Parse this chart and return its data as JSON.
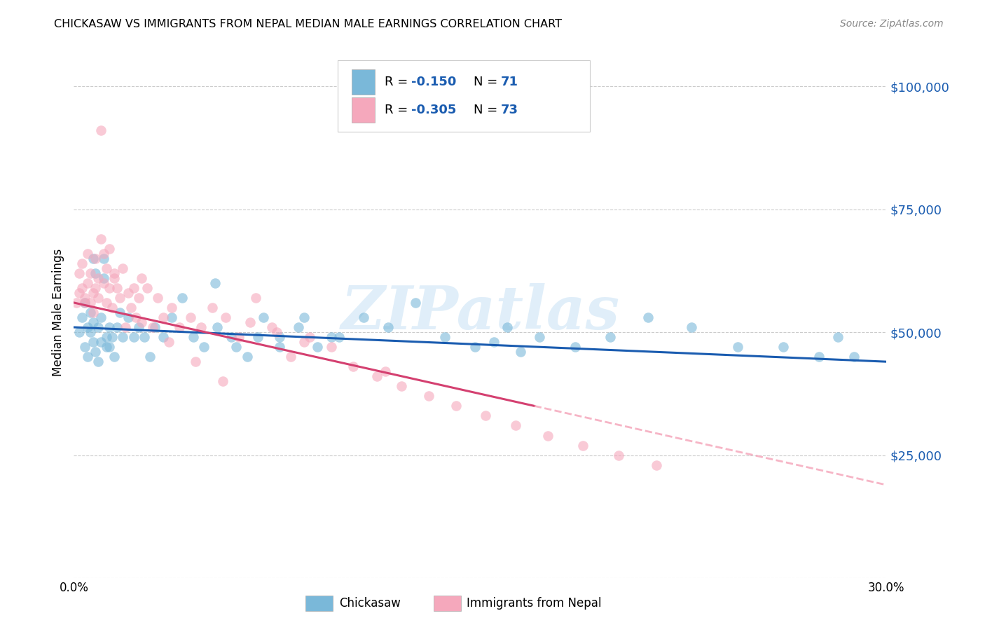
{
  "title": "CHICKASAW VS IMMIGRANTS FROM NEPAL MEDIAN MALE EARNINGS CORRELATION CHART",
  "source": "Source: ZipAtlas.com",
  "ylabel": "Median Male Earnings",
  "yticks": [
    0,
    25000,
    50000,
    75000,
    100000
  ],
  "ytick_labels": [
    "",
    "$25,000",
    "$50,000",
    "$75,000",
    "$100,000"
  ],
  "xtick_positions": [
    0.0,
    0.05,
    0.1,
    0.15,
    0.2,
    0.25,
    0.3
  ],
  "xtick_labels": [
    "0.0%",
    "",
    "",
    "",
    "",
    "",
    "30.0%"
  ],
  "xmin": 0.0,
  "xmax": 0.3,
  "ymin": 0,
  "ymax": 108000,
  "legend_r1": "R = -0.150",
  "legend_n1": "N = 71",
  "legend_r2": "R = -0.305",
  "legend_n2": "N = 73",
  "legend_label1": "Chickasaw",
  "legend_label2": "Immigrants from Nepal",
  "color_blue": "#7ab8d9",
  "color_pink": "#f5a8bc",
  "color_blue_line": "#1a5cb0",
  "color_pink_line": "#d44070",
  "color_ytick": "#1a5cb0",
  "watermark_color": "#cce4f5",
  "grid_color": "#cccccc",
  "chickasaw_x": [
    0.002,
    0.003,
    0.004,
    0.004,
    0.005,
    0.005,
    0.006,
    0.006,
    0.007,
    0.007,
    0.007,
    0.008,
    0.008,
    0.009,
    0.009,
    0.01,
    0.01,
    0.011,
    0.011,
    0.012,
    0.012,
    0.013,
    0.013,
    0.014,
    0.015,
    0.016,
    0.017,
    0.018,
    0.02,
    0.022,
    0.024,
    0.026,
    0.028,
    0.03,
    0.033,
    0.036,
    0.04,
    0.044,
    0.048,
    0.053,
    0.058,
    0.064,
    0.07,
    0.076,
    0.083,
    0.09,
    0.098,
    0.107,
    0.116,
    0.126,
    0.137,
    0.148,
    0.16,
    0.172,
    0.185,
    0.198,
    0.212,
    0.228,
    0.245,
    0.262,
    0.275,
    0.282,
    0.288,
    0.052,
    0.06,
    0.068,
    0.076,
    0.085,
    0.095,
    0.155,
    0.165
  ],
  "chickasaw_y": [
    50000,
    53000,
    47000,
    56000,
    51000,
    45000,
    50000,
    54000,
    48000,
    52000,
    65000,
    62000,
    46000,
    51000,
    44000,
    53000,
    48000,
    65000,
    61000,
    49000,
    47000,
    51000,
    47000,
    49000,
    45000,
    51000,
    54000,
    49000,
    53000,
    49000,
    51000,
    49000,
    45000,
    51000,
    49000,
    53000,
    57000,
    49000,
    47000,
    51000,
    49000,
    45000,
    53000,
    49000,
    51000,
    47000,
    49000,
    53000,
    51000,
    56000,
    49000,
    47000,
    51000,
    49000,
    47000,
    49000,
    53000,
    51000,
    47000,
    47000,
    45000,
    49000,
    45000,
    60000,
    47000,
    49000,
    47000,
    53000,
    49000,
    48000,
    46000
  ],
  "nepal_x": [
    0.001,
    0.002,
    0.002,
    0.003,
    0.003,
    0.004,
    0.004,
    0.005,
    0.005,
    0.006,
    0.006,
    0.007,
    0.007,
    0.008,
    0.008,
    0.009,
    0.009,
    0.01,
    0.01,
    0.011,
    0.011,
    0.012,
    0.012,
    0.013,
    0.013,
    0.014,
    0.015,
    0.016,
    0.017,
    0.018,
    0.019,
    0.02,
    0.021,
    0.022,
    0.023,
    0.024,
    0.025,
    0.027,
    0.029,
    0.031,
    0.033,
    0.036,
    0.039,
    0.043,
    0.047,
    0.051,
    0.056,
    0.061,
    0.067,
    0.073,
    0.08,
    0.087,
    0.095,
    0.103,
    0.112,
    0.121,
    0.131,
    0.141,
    0.152,
    0.163,
    0.175,
    0.188,
    0.201,
    0.215,
    0.015,
    0.025,
    0.035,
    0.045,
    0.055,
    0.065,
    0.075,
    0.085,
    0.115
  ],
  "nepal_y": [
    56000,
    58000,
    62000,
    59000,
    64000,
    57000,
    56000,
    60000,
    66000,
    56000,
    62000,
    58000,
    54000,
    59000,
    65000,
    61000,
    57000,
    69000,
    91000,
    66000,
    60000,
    56000,
    63000,
    59000,
    67000,
    55000,
    61000,
    59000,
    57000,
    63000,
    51000,
    58000,
    55000,
    59000,
    53000,
    57000,
    61000,
    59000,
    51000,
    57000,
    53000,
    55000,
    51000,
    53000,
    51000,
    55000,
    53000,
    49000,
    57000,
    51000,
    45000,
    49000,
    47000,
    43000,
    41000,
    39000,
    37000,
    35000,
    33000,
    31000,
    29000,
    27000,
    25000,
    23000,
    62000,
    52000,
    48000,
    44000,
    40000,
    52000,
    50000,
    48000,
    42000
  ]
}
